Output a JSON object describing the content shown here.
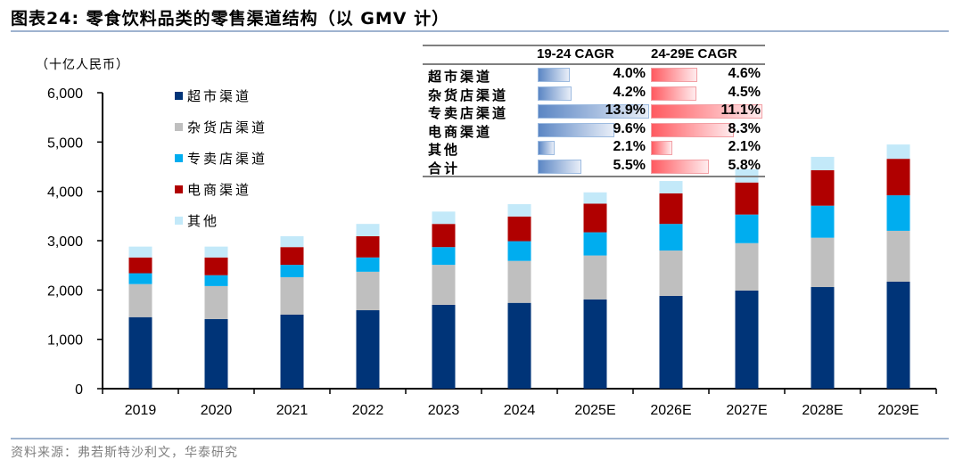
{
  "header": {
    "title": "图表24:  零食饮料品类的零售渠道结构（以 GMV 计）"
  },
  "footer": {
    "source": "资料来源：弗若斯特沙利文，华泰研究"
  },
  "chart_data": {
    "type": "bar",
    "stacked": true,
    "title": "零食饮料品类的零售渠道结构（以 GMV 计）",
    "unit_label": "（十亿人民币）",
    "xlabel": "",
    "ylabel": "（十亿人民币）",
    "ylim": [
      0,
      6000
    ],
    "yticks": [
      0,
      1000,
      2000,
      3000,
      4000,
      5000,
      6000
    ],
    "ytick_labels": [
      "0",
      "1,000",
      "2,000",
      "3,000",
      "4,000",
      "5,000",
      "6,000"
    ],
    "grid": false,
    "legend_position": "top-left",
    "categories": [
      "2019",
      "2020",
      "2021",
      "2022",
      "2023",
      "2024",
      "2025E",
      "2026E",
      "2027E",
      "2028E",
      "2029E"
    ],
    "series": [
      {
        "name": "超市渠道",
        "color": "#003478",
        "values": [
          1450,
          1410,
          1500,
          1590,
          1700,
          1740,
          1810,
          1880,
          1990,
          2060,
          2170
        ]
      },
      {
        "name": "杂货店渠道",
        "color": "#bfbfbf",
        "values": [
          670,
          670,
          760,
          780,
          810,
          850,
          890,
          920,
          960,
          1000,
          1030
        ]
      },
      {
        "name": "专卖店渠道",
        "color": "#00adef",
        "values": [
          220,
          220,
          250,
          290,
          360,
          400,
          470,
          540,
          580,
          650,
          720
        ]
      },
      {
        "name": "电商渠道",
        "color": "#b00000",
        "values": [
          320,
          360,
          360,
          430,
          470,
          500,
          580,
          620,
          650,
          720,
          740
        ]
      },
      {
        "name": "其他",
        "color": "#c3e9f9",
        "values": [
          220,
          220,
          220,
          250,
          250,
          250,
          230,
          250,
          270,
          270,
          290
        ]
      }
    ]
  },
  "cagr_table": {
    "headers": [
      "19-24 CAGR",
      "24-29E CAGR"
    ],
    "rows": [
      {
        "label": "超市渠道",
        "cagr_19_24": "4.0%",
        "v1": 4.0,
        "cagr_24_29": "4.6%",
        "v2": 4.6
      },
      {
        "label": "杂货店渠道",
        "cagr_19_24": "4.2%",
        "v1": 4.2,
        "cagr_24_29": "4.5%",
        "v2": 4.5
      },
      {
        "label": "专卖店渠道",
        "cagr_19_24": "13.9%",
        "v1": 13.9,
        "cagr_24_29": "11.1%",
        "v2": 11.1
      },
      {
        "label": "电商渠道",
        "cagr_19_24": "9.6%",
        "v1": 9.6,
        "cagr_24_29": "8.3%",
        "v2": 8.3
      },
      {
        "label": "其他",
        "cagr_19_24": "2.1%",
        "v1": 2.1,
        "cagr_24_29": "2.1%",
        "v2": 2.1
      },
      {
        "label": "合计",
        "cagr_19_24": "5.5%",
        "v1": 5.5,
        "cagr_24_29": "5.8%",
        "v2": 5.8
      }
    ]
  }
}
